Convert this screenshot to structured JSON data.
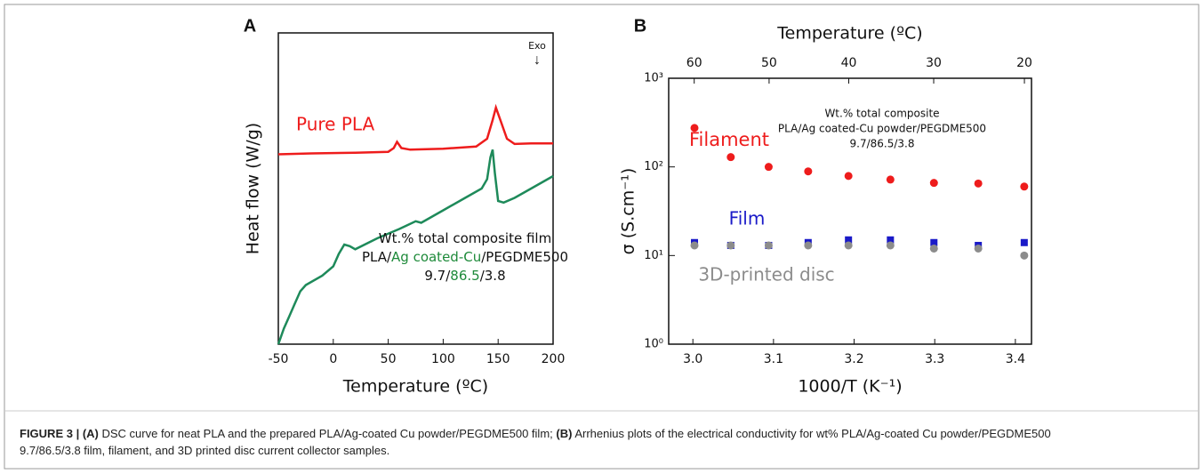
{
  "chart_data": [
    {
      "type": "line",
      "panel": "A",
      "xlabel": "Temperature (ºC)",
      "ylabel": "Heat flow (W/g)",
      "xlim": [
        -50,
        200
      ],
      "xticks": [
        -50,
        0,
        50,
        100,
        150,
        200
      ],
      "ylim": [
        0,
        100
      ],
      "series": [
        {
          "name": "Pure PLA",
          "color": "#ee1c1c",
          "x": [
            -50,
            -20,
            20,
            50,
            55,
            58,
            62,
            70,
            100,
            130,
            140,
            145,
            148,
            152,
            158,
            165,
            180,
            200
          ],
          "values": [
            61,
            61.3,
            61.5,
            61.8,
            63,
            65,
            63,
            62.5,
            62.8,
            63.5,
            66,
            72,
            76,
            72,
            66,
            64.3,
            64.5,
            64.5
          ]
        },
        {
          "color": "#1e8a5a",
          "x": [
            -50,
            -45,
            -40,
            -35,
            -30,
            -25,
            -10,
            0,
            5,
            10,
            15,
            20,
            40,
            60,
            75,
            80,
            100,
            120,
            135,
            140,
            143,
            145,
            147,
            150,
            155,
            165,
            180,
            200
          ],
          "values": [
            0,
            5,
            9,
            13,
            17,
            19,
            22,
            25,
            29,
            32,
            31.5,
            30.5,
            34,
            37,
            39.5,
            39,
            43,
            47,
            50,
            53,
            60,
            62.5,
            55,
            46,
            45.5,
            47,
            50,
            54
          ]
        }
      ],
      "exo_label": "Exo",
      "arrow": "↓",
      "annotation_lines": [
        [
          "Wt.% total composite film"
        ],
        [
          "PLA/",
          "Ag coated-Cu",
          "/PEGDME500"
        ],
        [
          "9.7/",
          "86.5",
          "/3.8"
        ]
      ],
      "highlight_color": "#1e8a3a"
    },
    {
      "type": "scatter",
      "panel": "B",
      "xlabel": "1000/T (K⁻¹)",
      "ylabel": "σ (S.cm⁻¹)",
      "x2label": "Temperature (ºC)",
      "xlim": [
        2.97,
        3.42
      ],
      "xticks": [
        {
          "value": 3.0,
          "label": "3.0"
        },
        3.1,
        3.2,
        3.3,
        3.4
      ],
      "x2ticks": [
        60,
        50,
        40,
        30,
        20
      ],
      "log_y": true,
      "ylim": [
        1,
        1000
      ],
      "yticks": [
        {
          "value": 1,
          "label": "10⁰"
        },
        {
          "value": 10,
          "label": "10¹"
        },
        {
          "value": 100,
          "label": "10²"
        },
        {
          "value": 1000,
          "label": "10³"
        }
      ],
      "x": [
        3.002,
        3.047,
        3.094,
        3.143,
        3.193,
        3.245,
        3.299,
        3.354,
        3.411
      ],
      "series": [
        {
          "name": "Filament",
          "color": "#ee1c1c",
          "marker": "circle",
          "values": [
            275,
            129,
            100,
            89,
            79,
            72,
            66,
            65,
            60
          ]
        },
        {
          "name": "Film",
          "color": "#1a1ac8",
          "marker": "square",
          "values": [
            14,
            13,
            13,
            14,
            15,
            15,
            14,
            13,
            14
          ]
        },
        {
          "name": "3D-printed disc",
          "color": "#8c8c8c",
          "marker": "circle",
          "values": [
            13,
            13,
            13,
            13,
            13,
            13,
            12,
            12,
            10
          ]
        }
      ],
      "annotation_lines": [
        "Wt.% total composite",
        "PLA/Ag coated-Cu powder/PEGDME500",
        "9.7/86.5/3.8"
      ]
    }
  ],
  "caption": [
    {
      "text": "FIGURE 3 | (A)",
      "bold": true
    },
    {
      "text": " DSC curve for neat PLA and the prepared PLA/Ag-coated Cu powder/PEGDME500 film; ",
      "bold": false
    },
    {
      "text": "(B)",
      "bold": true
    },
    {
      "text": " Arrhenius plots of the electrical conductivity for wt% PLA/Ag-coated Cu powder/PEGDME500 9.7/86.5/3.8 film, filament, and 3D printed disc current collector samples.",
      "bold": false
    }
  ]
}
